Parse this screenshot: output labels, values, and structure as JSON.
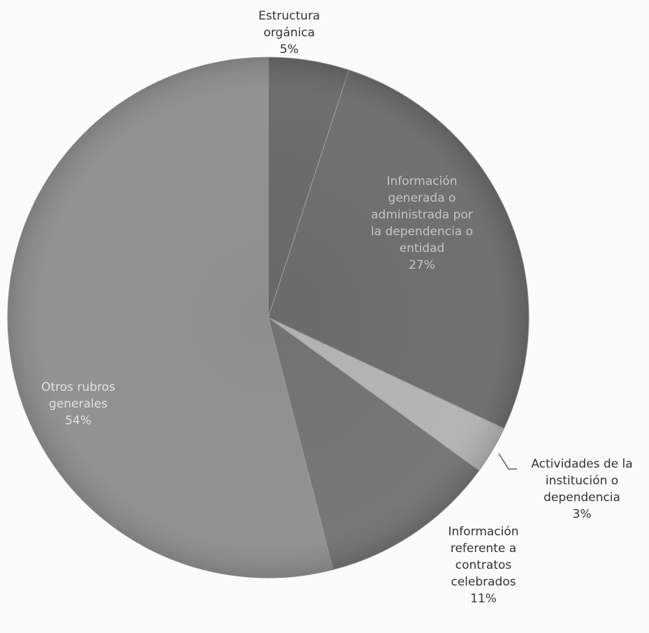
{
  "chart_data": {
    "type": "pie",
    "slices": [
      {
        "label_lines": [
          "Estructura",
          "orgánica"
        ],
        "percent_label": "5%",
        "value": 5,
        "color": "#686868",
        "label_color": "#333333"
      },
      {
        "label_lines": [
          "Información",
          "generada o",
          "administrada por",
          "la dependencia o",
          "entidad"
        ],
        "percent_label": "27%",
        "value": 27,
        "color": "#6b6b6b",
        "label_color": "#c4c4c4"
      },
      {
        "label_lines": [
          "Actividades de la",
          "institución o",
          "dependencia"
        ],
        "percent_label": "3%",
        "value": 3,
        "color": "#b2b2b2",
        "label_color": "#333333"
      },
      {
        "label_lines": [
          "Información",
          "referente a",
          "contratos",
          "celebrados"
        ],
        "percent_label": "11%",
        "value": 11,
        "color": "#727272",
        "label_color": "#333333"
      },
      {
        "label_lines": [
          "Otros rubros",
          "generales"
        ],
        "percent_label": "54%",
        "value": 54,
        "color": "#8e8e8e",
        "label_color": "#e2e2e2"
      }
    ],
    "title": "",
    "legend": "none"
  }
}
